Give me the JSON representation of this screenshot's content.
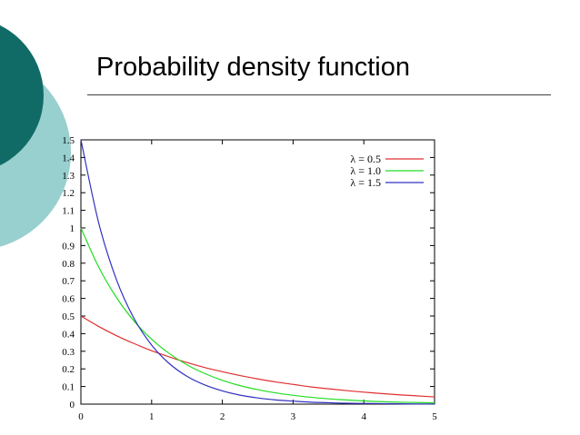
{
  "slide": {
    "title": "Probability density function"
  },
  "colors": {
    "deco_dark": "#106b66",
    "deco_light": "#98cfcf"
  },
  "chart_data": {
    "type": "line",
    "title": "",
    "xlabel": "",
    "ylabel": "",
    "xlim": [
      0,
      5
    ],
    "ylim": [
      0,
      1.5
    ],
    "x_ticks": [
      0,
      1,
      2,
      3,
      4,
      5
    ],
    "y_ticks": [
      0,
      0.1,
      0.2,
      0.3,
      0.4,
      0.5,
      0.6,
      0.7,
      0.8,
      0.9,
      1,
      1.1,
      1.2,
      1.3,
      1.4,
      1.5
    ],
    "y_tick_labels": [
      "0",
      "0.1",
      "0.2",
      "0.3",
      "0.4",
      "0.5",
      "0.6",
      "0.7",
      "0.8",
      "0.9",
      "1",
      "1.1",
      "1.2",
      "1.3",
      "1.4",
      "1.5"
    ],
    "legend_position": "top-right",
    "grid": false,
    "x": [
      0,
      0.25,
      0.5,
      0.75,
      1,
      1.25,
      1.5,
      1.75,
      2,
      2.25,
      2.5,
      2.75,
      3,
      3.25,
      3.5,
      3.75,
      4,
      4.25,
      4.5,
      4.75,
      5
    ],
    "series": [
      {
        "name": "λ = 0.5",
        "color": "#e03030",
        "values": [
          0.5,
          0.441,
          0.389,
          0.344,
          0.303,
          0.268,
          0.236,
          0.208,
          0.184,
          0.162,
          0.143,
          0.126,
          0.112,
          0.098,
          0.087,
          0.077,
          0.068,
          0.06,
          0.053,
          0.047,
          0.041
        ]
      },
      {
        "name": "λ = 1.0",
        "color": "#22dd22",
        "values": [
          1.0,
          0.779,
          0.607,
          0.472,
          0.368,
          0.287,
          0.223,
          0.174,
          0.135,
          0.105,
          0.082,
          0.064,
          0.05,
          0.039,
          0.03,
          0.024,
          0.018,
          0.014,
          0.011,
          0.009,
          0.007
        ]
      },
      {
        "name": "λ = 1.5",
        "color": "#3030c0",
        "values": [
          1.5,
          1.031,
          0.709,
          0.487,
          0.335,
          0.23,
          0.158,
          0.109,
          0.075,
          0.051,
          0.035,
          0.024,
          0.017,
          0.011,
          0.008,
          0.005,
          0.004,
          0.003,
          0.002,
          0.001,
          0.001
        ]
      }
    ]
  }
}
